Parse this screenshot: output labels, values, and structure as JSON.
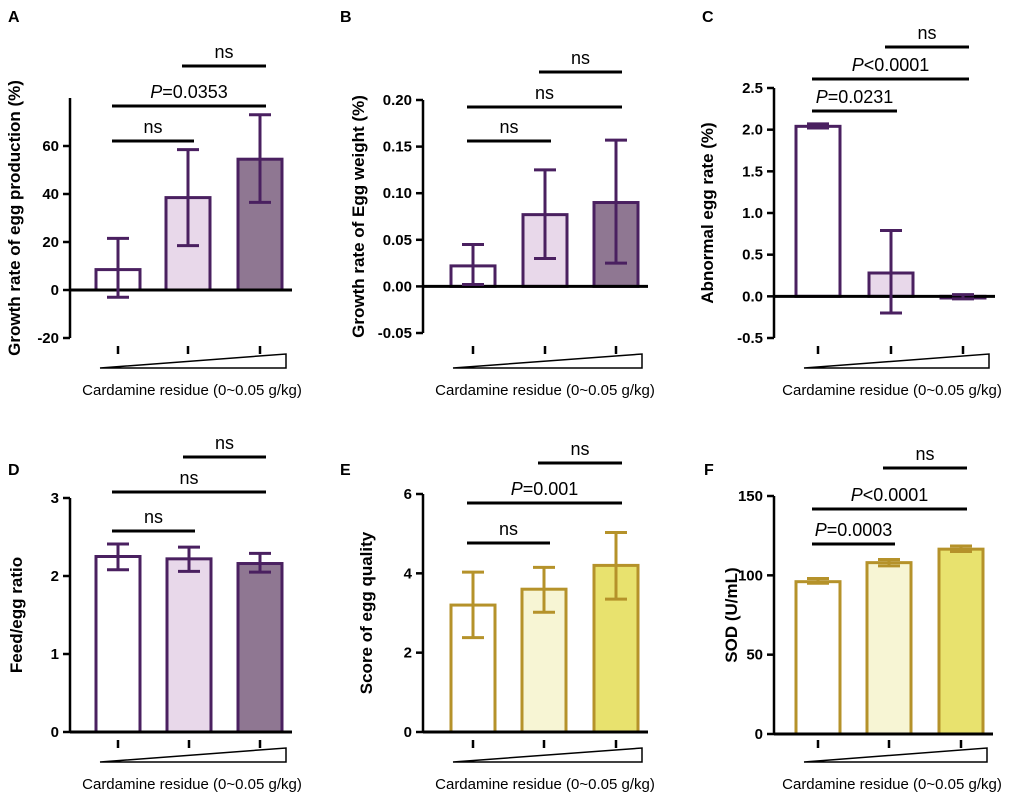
{
  "chart_data": [
    {
      "panel": "A",
      "type": "bar",
      "ylabel": "Growth rate of egg production (%)",
      "xlabel": "Cardamine residue (0~0.05 g/kg)",
      "ylim": [
        -20,
        80
      ],
      "ticks": [
        "-20",
        "0",
        "20",
        "40",
        "60"
      ],
      "values": [
        8.5,
        38.5,
        54.5
      ],
      "errors": [
        [
          -3,
          21.5
        ],
        [
          18.5,
          58.5
        ],
        [
          36.5,
          73
        ]
      ],
      "fills": [
        "#ffffff",
        "#e8d8ea",
        "#8f7792"
      ],
      "stroke": "#4a2060",
      "comparisons": [
        {
          "from": 1,
          "to": 2,
          "label": "ns",
          "level": 0
        },
        {
          "from": 1,
          "to": 3,
          "label_italic": "P",
          "label": "=0.0353",
          "level": 1
        },
        {
          "from": 2,
          "to": 3,
          "label": "ns",
          "level": 2
        }
      ]
    },
    {
      "panel": "B",
      "type": "bar",
      "ylabel": "Growth rate of Egg weight (%)",
      "xlabel": "Cardamine residue (0~0.05 g/kg)",
      "ylim": [
        -0.05,
        0.2
      ],
      "ticks": [
        "-0.05",
        "0.00",
        "0.05",
        "0.10",
        "0.15",
        "0.20"
      ],
      "values": [
        0.022,
        0.077,
        0.09
      ],
      "errors": [
        [
          0.002,
          0.045
        ],
        [
          0.03,
          0.125
        ],
        [
          0.025,
          0.157
        ]
      ],
      "fills": [
        "#ffffff",
        "#e8d8ea",
        "#8f7792"
      ],
      "stroke": "#4a2060",
      "comparisons": [
        {
          "from": 1,
          "to": 2,
          "label": "ns",
          "level": 0
        },
        {
          "from": 1,
          "to": 3,
          "label": "ns",
          "level": 1
        },
        {
          "from": 2,
          "to": 3,
          "label": "ns",
          "level": 2
        }
      ]
    },
    {
      "panel": "C",
      "type": "bar",
      "ylabel": "Abnormal egg rate  (%)",
      "xlabel": "Cardamine residue (0~0.05 g/kg)",
      "ylim": [
        -0.5,
        2.5
      ],
      "ticks": [
        "-0.5",
        "0.0",
        "0.5",
        "1.0",
        "1.5",
        "2.0",
        "2.5"
      ],
      "values": [
        2.04,
        0.28,
        -0.02
      ],
      "errors": [
        [
          2.02,
          2.07
        ],
        [
          -0.2,
          0.79
        ],
        [
          -0.03,
          0.02
        ]
      ],
      "fills": [
        "#ffffff",
        "#e8d8ea",
        "#8f7792"
      ],
      "stroke": "#4a2060",
      "comparisons": [
        {
          "from": 1,
          "to": 2,
          "label_italic": "P",
          "label": "=0.0231",
          "level": 0
        },
        {
          "from": 1,
          "to": 3,
          "label_italic": "P",
          "label": "<0.0001",
          "level": 1
        },
        {
          "from": 2,
          "to": 3,
          "label": "ns",
          "level": 2
        }
      ]
    },
    {
      "panel": "D",
      "type": "bar",
      "ylabel": "Feed/egg ratio",
      "xlabel": "Cardamine residue (0~0.05 g/kg)",
      "ylim": [
        0,
        3
      ],
      "ticks": [
        "0",
        "1",
        "2",
        "3"
      ],
      "values": [
        2.25,
        2.22,
        2.16
      ],
      "errors": [
        [
          2.08,
          2.41
        ],
        [
          2.06,
          2.37
        ],
        [
          2.05,
          2.29
        ]
      ],
      "fills": [
        "#ffffff",
        "#e8d8ea",
        "#8f7792"
      ],
      "stroke": "#4a2060",
      "comparisons": [
        {
          "from": 1,
          "to": 2,
          "label": "ns",
          "level": 0
        },
        {
          "from": 1,
          "to": 3,
          "label": "ns",
          "level": 1
        },
        {
          "from": 2,
          "to": 3,
          "label": "ns",
          "level": 2
        }
      ]
    },
    {
      "panel": "E",
      "type": "bar",
      "ylabel": "Score of egg quality",
      "xlabel": "Cardamine residue (0~0.05 g/kg)",
      "ylim": [
        0,
        6
      ],
      "ticks": [
        "0",
        "2",
        "4",
        "6"
      ],
      "values": [
        3.2,
        3.6,
        4.2
      ],
      "errors": [
        [
          2.38,
          4.03
        ],
        [
          3.02,
          4.15
        ],
        [
          3.35,
          5.03
        ]
      ],
      "fills": [
        "#ffffff",
        "#f7f5d4",
        "#e8e26e"
      ],
      "stroke": "#b5922a",
      "comparisons": [
        {
          "from": 1,
          "to": 2,
          "label": "ns",
          "level": 0
        },
        {
          "from": 1,
          "to": 3,
          "label_italic": "P",
          "label": "=0.001",
          "level": 1
        },
        {
          "from": 2,
          "to": 3,
          "label": "ns",
          "level": 2
        }
      ]
    },
    {
      "panel": "F",
      "type": "bar",
      "ylabel": "SOD (U/mL)",
      "xlabel": "Cardamine residue (0~0.05 g/kg)",
      "ylim": [
        0,
        150
      ],
      "ticks": [
        "0",
        "50",
        "100",
        "150"
      ],
      "values": [
        96,
        108,
        116.5
      ],
      "errors": [
        [
          95,
          98
        ],
        [
          106,
          110
        ],
        [
          115,
          118.5
        ]
      ],
      "fills": [
        "#ffffff",
        "#f7f5d4",
        "#e8e26e"
      ],
      "stroke": "#b5922a",
      "comparisons": [
        {
          "from": 1,
          "to": 2,
          "label_italic": "P",
          "label": "=0.0003",
          "level": 0
        },
        {
          "from": 1,
          "to": 3,
          "label_italic": "P",
          "label": "<0.0001",
          "level": 1
        },
        {
          "from": 2,
          "to": 3,
          "label": "ns",
          "level": 2
        }
      ]
    }
  ]
}
